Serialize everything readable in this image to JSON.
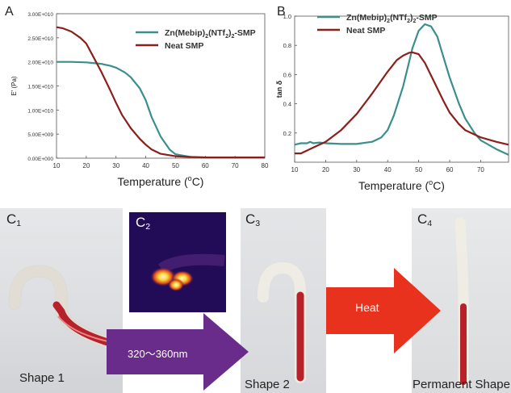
{
  "panels": {
    "a_letter": "A",
    "b_letter": "B"
  },
  "chart_data": [
    {
      "type": "line",
      "panel": "A",
      "xlabel": "Temperature (oC)",
      "xlabel_parts": [
        "Temperature (",
        "o",
        "C)"
      ],
      "ylabel": "E' (Pa)",
      "xlim": [
        10,
        80
      ],
      "ylim": [
        0,
        30000000000.0
      ],
      "x_ticks": [
        "10",
        "20",
        "30",
        "40",
        "50",
        "60",
        "70",
        "80"
      ],
      "y_ticks": [
        "0.00E+000",
        "5.00E+009",
        "1.00E+010",
        "1.50E+010",
        "2.00E+010",
        "2.50E+010",
        "3.00E+010"
      ],
      "legend_position": "top-right",
      "series": [
        {
          "name": "Zn(Mebip)2(NTf2)2-SMP",
          "color": "#3a8f8c",
          "x": [
            10,
            15,
            20,
            25,
            28,
            30,
            33,
            35,
            38,
            40,
            42,
            45,
            48,
            50,
            55,
            60,
            70,
            80
          ],
          "y": [
            20000000000.0,
            20000000000.0,
            19900000000.0,
            19600000000.0,
            19200000000.0,
            18800000000.0,
            17800000000.0,
            16800000000.0,
            14500000000.0,
            12000000000.0,
            8500000000.0,
            4500000000.0,
            1800000000.0,
            800000000.0,
            250000000.0,
            150000000.0,
            150000000.0,
            150000000.0
          ]
        },
        {
          "name": "Neat SMP",
          "color": "#8b1f1c",
          "x": [
            10,
            12,
            15,
            18,
            20,
            22,
            25,
            28,
            30,
            32,
            35,
            38,
            40,
            42,
            45,
            50,
            55,
            60,
            70,
            80
          ],
          "y": [
            27200000000.0,
            27000000000.0,
            26300000000.0,
            25000000000.0,
            23800000000.0,
            21500000000.0,
            18000000000.0,
            14200000000.0,
            11500000000.0,
            9000000000.0,
            6200000000.0,
            4000000000.0,
            2800000000.0,
            1800000000.0,
            900000000.0,
            400000000.0,
            250000000.0,
            150000000.0,
            150000000.0,
            150000000.0
          ]
        }
      ]
    },
    {
      "type": "line",
      "panel": "B",
      "xlabel": "Temperature (oC)",
      "xlabel_parts": [
        "Temperature (",
        "o",
        "C)"
      ],
      "ylabel": "tan δ",
      "xlim": [
        10,
        79
      ],
      "ylim": [
        0.0,
        1.0
      ],
      "x_ticks": [
        "10",
        "20",
        "30",
        "40",
        "50",
        "60",
        "70"
      ],
      "y_ticks": [
        "0.2",
        "0.4",
        "0.6",
        "0.8",
        "1.0"
      ],
      "legend_position": "top-left",
      "series": [
        {
          "name": "Zn(Mebip)2(NTf2)2-SMP",
          "color": "#3a8f8c",
          "x": [
            10,
            12,
            14,
            15,
            16,
            18,
            20,
            25,
            30,
            35,
            38,
            40,
            42,
            45,
            48,
            50,
            52,
            54,
            56,
            58,
            60,
            63,
            65,
            68,
            70,
            75,
            79
          ],
          "y": [
            0.12,
            0.13,
            0.13,
            0.14,
            0.13,
            0.135,
            0.13,
            0.125,
            0.125,
            0.14,
            0.17,
            0.22,
            0.32,
            0.52,
            0.78,
            0.9,
            0.945,
            0.93,
            0.86,
            0.72,
            0.58,
            0.4,
            0.3,
            0.2,
            0.15,
            0.09,
            0.05
          ]
        },
        {
          "name": "Neat SMP",
          "color": "#8b1f1c",
          "x": [
            10,
            12,
            14,
            16,
            18,
            20,
            25,
            30,
            35,
            40,
            43,
            45,
            47,
            48,
            50,
            52,
            55,
            58,
            60,
            63,
            65,
            70,
            75,
            79
          ],
          "y": [
            0.06,
            0.06,
            0.08,
            0.1,
            0.12,
            0.14,
            0.22,
            0.33,
            0.47,
            0.62,
            0.7,
            0.73,
            0.75,
            0.752,
            0.74,
            0.68,
            0.55,
            0.42,
            0.34,
            0.26,
            0.22,
            0.17,
            0.14,
            0.12
          ]
        }
      ]
    }
  ],
  "legend_display": {
    "zn_main": "Zn(Mebip)",
    "zn_sub1": "2",
    "zn_mid": "(NTf",
    "zn_sub2": "2",
    "zn_mid2": ")",
    "zn_sub3": "2",
    "zn_end": "-SMP",
    "neat": "Neat SMP"
  },
  "photos": {
    "c1": {
      "letter": "C",
      "sub": "1",
      "caption": "Shape 1"
    },
    "c2": {
      "letter": "C",
      "sub": "2"
    },
    "c3": {
      "letter": "C",
      "sub": "3",
      "caption": "Shape 2"
    },
    "c4": {
      "letter": "C",
      "sub": "4",
      "caption": "Permanent Shape"
    }
  },
  "arrows": {
    "uv": {
      "label": "320～360nm",
      "color": "#6a2c8a"
    },
    "heat": {
      "label": "Heat",
      "color": "#e8321e"
    }
  }
}
